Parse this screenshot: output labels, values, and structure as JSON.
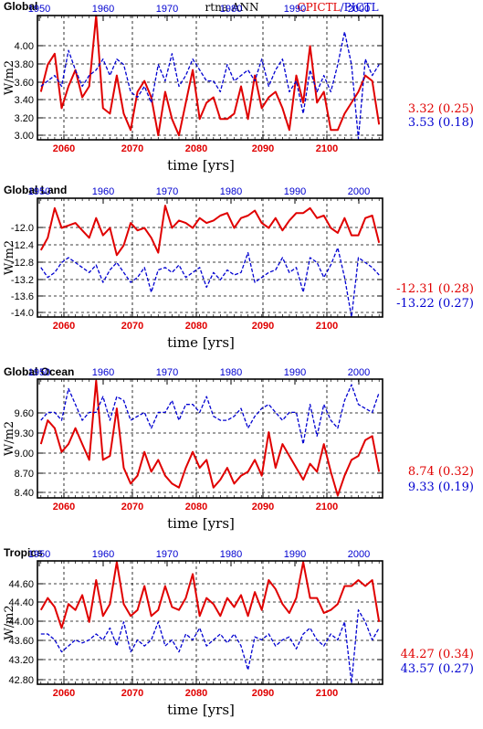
{
  "header": {
    "center": "rtna ANN",
    "series_label_red": "CPICTL",
    "series_label_sep": "/",
    "series_label_blue": "PICTL"
  },
  "colors": {
    "red": "#e00000",
    "blue": "#0000d0",
    "black": "#000000"
  },
  "chart_data": [
    {
      "type": "line",
      "title": "Global",
      "xlabel": "time [yrs]",
      "ylabel": "W/m2",
      "bottom_ticks": [
        "2060",
        "2070",
        "2080",
        "2090",
        "2100"
      ],
      "top_ticks": [
        "1950",
        "1960",
        "1970",
        "1980",
        "1990",
        "2000"
      ],
      "y_ticks": [
        "4.00",
        "3.80",
        "3.60",
        "3.40",
        "3.20",
        "3.00"
      ],
      "ylim": [
        2.96,
        4.1
      ],
      "stats": [
        {
          "text": "3.32 (0.25)",
          "color": "red"
        },
        {
          "text": "3.53 (0.18)",
          "color": "blue"
        }
      ],
      "series": [
        {
          "color": "red",
          "style": "solid",
          "values": [
            3.4,
            3.65,
            3.75,
            3.25,
            3.45,
            3.6,
            3.35,
            3.45,
            4.12,
            3.25,
            3.2,
            3.55,
            3.2,
            3.05,
            3.4,
            3.5,
            3.35,
            3.0,
            3.4,
            3.15,
            3.0,
            3.3,
            3.6,
            3.15,
            3.3,
            3.35,
            3.15,
            3.15,
            3.2,
            3.45,
            3.15,
            3.55,
            3.25,
            3.35,
            3.4,
            3.25,
            3.05,
            3.55,
            3.3,
            3.82,
            3.3,
            3.4,
            3.05,
            3.05,
            3.2,
            3.3,
            3.4,
            3.55,
            3.5,
            3.1
          ]
        },
        {
          "color": "blue",
          "style": "dashed",
          "values": [
            3.45,
            3.5,
            3.55,
            3.45,
            3.78,
            3.6,
            3.45,
            3.55,
            3.6,
            3.7,
            3.55,
            3.7,
            3.65,
            3.4,
            3.35,
            3.45,
            3.3,
            3.65,
            3.5,
            3.75,
            3.45,
            3.55,
            3.7,
            3.6,
            3.5,
            3.5,
            3.4,
            3.65,
            3.5,
            3.55,
            3.6,
            3.5,
            3.7,
            3.45,
            3.6,
            3.7,
            3.4,
            3.5,
            3.2,
            3.6,
            3.4,
            3.55,
            3.4,
            3.65,
            3.95,
            3.65,
            2.97,
            3.7,
            3.55,
            3.65
          ]
        }
      ]
    },
    {
      "type": "line",
      "title": "Global Land",
      "xlabel": "time [yrs]",
      "ylabel": "W/m2",
      "bottom_ticks": [
        "2060",
        "2070",
        "2080",
        "2090",
        "2100"
      ],
      "top_ticks": [
        "1950",
        "1960",
        "1970",
        "1980",
        "1990",
        "2000"
      ],
      "y_ticks": [
        "-12.0",
        "-12.4",
        "-12.8",
        "-13.2",
        "-13.6",
        "-14.0"
      ],
      "ylim": [
        -14.2,
        -11.8
      ],
      "stats": [
        {
          "text": "-12.31 (0.28)",
          "color": "red"
        },
        {
          "text": "-13.22 (0.27)",
          "color": "blue"
        }
      ],
      "series": [
        {
          "color": "red",
          "style": "solid",
          "values": [
            -12.85,
            -12.6,
            -12.0,
            -12.4,
            -12.35,
            -12.3,
            -12.45,
            -12.6,
            -12.2,
            -12.55,
            -12.4,
            -12.95,
            -12.75,
            -12.3,
            -12.45,
            -12.4,
            -12.6,
            -12.9,
            -11.95,
            -12.4,
            -12.25,
            -12.3,
            -12.4,
            -12.2,
            -12.3,
            -12.25,
            -12.15,
            -12.1,
            -12.4,
            -12.2,
            -12.15,
            -12.05,
            -12.3,
            -12.4,
            -12.2,
            -12.45,
            -12.25,
            -12.1,
            -12.1,
            -12.0,
            -12.2,
            -12.15,
            -12.4,
            -12.5,
            -12.2,
            -12.55,
            -12.55,
            -12.2,
            -12.15,
            -12.7
          ]
        },
        {
          "color": "blue",
          "style": "dashed",
          "values": [
            -13.2,
            -13.4,
            -13.3,
            -13.1,
            -13.0,
            -13.1,
            -13.2,
            -13.3,
            -13.15,
            -13.5,
            -13.25,
            -13.1,
            -13.3,
            -13.5,
            -13.4,
            -13.2,
            -13.7,
            -13.25,
            -13.2,
            -13.3,
            -13.15,
            -13.4,
            -13.3,
            -13.2,
            -13.6,
            -13.3,
            -13.45,
            -13.25,
            -13.35,
            -13.3,
            -12.9,
            -13.5,
            -13.4,
            -13.3,
            -13.25,
            -13.0,
            -13.3,
            -13.2,
            -13.7,
            -13.0,
            -13.1,
            -13.4,
            -13.15,
            -12.8,
            -13.4,
            -14.2,
            -13.0,
            -13.1,
            -13.2,
            -13.35
          ]
        }
      ]
    },
    {
      "type": "line",
      "title": "Global Ocean",
      "xlabel": "time [yrs]",
      "ylabel": "W/m2",
      "bottom_ticks": [
        "2060",
        "2070",
        "2080",
        "2090",
        "2100"
      ],
      "top_ticks": [
        "1950",
        "1960",
        "1970",
        "1980",
        "1990",
        "2000"
      ],
      "y_ticks": [
        "9.60",
        "9.30",
        "9.00",
        "8.70",
        "8.40"
      ],
      "ylim": [
        8.22,
        9.72
      ],
      "stats": [
        {
          "text": "8.74 (0.32)",
          "color": "red"
        },
        {
          "text": "9.33 (0.19)",
          "color": "blue"
        }
      ],
      "series": [
        {
          "color": "red",
          "style": "solid",
          "values": [
            8.9,
            9.2,
            9.1,
            8.8,
            8.9,
            9.1,
            8.9,
            8.7,
            9.7,
            8.7,
            8.75,
            9.35,
            8.6,
            8.4,
            8.5,
            8.8,
            8.55,
            8.7,
            8.5,
            8.4,
            8.35,
            8.6,
            8.8,
            8.6,
            8.7,
            8.35,
            8.45,
            8.6,
            8.4,
            8.5,
            8.55,
            8.7,
            8.5,
            9.05,
            8.6,
            8.9,
            8.75,
            8.6,
            8.45,
            8.65,
            8.55,
            8.9,
            8.55,
            8.25,
            8.5,
            8.7,
            8.75,
            8.95,
            9.0,
            8.55
          ]
        },
        {
          "color": "blue",
          "style": "dashed",
          "values": [
            9.2,
            9.3,
            9.3,
            9.2,
            9.6,
            9.4,
            9.2,
            9.3,
            9.3,
            9.5,
            9.2,
            9.5,
            9.45,
            9.2,
            9.25,
            9.3,
            9.1,
            9.3,
            9.3,
            9.45,
            9.2,
            9.4,
            9.4,
            9.3,
            9.5,
            9.25,
            9.2,
            9.2,
            9.25,
            9.35,
            9.1,
            9.25,
            9.35,
            9.4,
            9.3,
            9.2,
            9.3,
            9.3,
            8.9,
            9.4,
            9.0,
            9.4,
            9.2,
            9.1,
            9.45,
            9.65,
            9.4,
            9.35,
            9.3,
            9.55
          ]
        }
      ]
    },
    {
      "type": "line",
      "title": "Tropics",
      "xlabel": "time [yrs]",
      "ylabel": "W/m2",
      "bottom_ticks": [
        "2060",
        "2070",
        "2080",
        "2090",
        "2100"
      ],
      "top_ticks": [
        "1950",
        "1960",
        "1970",
        "1980",
        "1990",
        "2000"
      ],
      "y_ticks": [
        "44.60",
        "44.40",
        "44.00",
        "43.60",
        "43.20",
        "42.80"
      ],
      "ylim": [
        42.76,
        44.82
      ],
      "stats": [
        {
          "text": "44.27 (0.34)",
          "color": "red"
        },
        {
          "text": "43.57 (0.27)",
          "color": "blue"
        }
      ],
      "series": [
        {
          "color": "red",
          "style": "solid",
          "values": [
            44.0,
            44.2,
            44.05,
            43.7,
            44.1,
            44.0,
            44.25,
            43.8,
            44.5,
            43.9,
            44.1,
            44.8,
            44.1,
            43.9,
            44.0,
            44.4,
            43.9,
            44.0,
            44.4,
            44.05,
            44.0,
            44.2,
            44.6,
            43.9,
            44.2,
            44.1,
            43.9,
            44.2,
            44.05,
            44.25,
            43.9,
            44.3,
            44.0,
            44.5,
            44.35,
            44.1,
            43.95,
            44.2,
            44.8,
            44.2,
            44.2,
            43.95,
            44.0,
            44.1,
            44.4,
            44.4,
            44.5,
            44.4,
            44.5,
            43.8
          ]
        },
        {
          "color": "blue",
          "style": "dashed",
          "values": [
            43.6,
            43.6,
            43.5,
            43.3,
            43.4,
            43.5,
            43.45,
            43.5,
            43.6,
            43.5,
            43.7,
            43.4,
            43.8,
            43.3,
            43.5,
            43.4,
            43.5,
            43.8,
            43.4,
            43.5,
            43.3,
            43.6,
            43.5,
            43.7,
            43.4,
            43.5,
            43.6,
            43.45,
            43.6,
            43.4,
            43.0,
            43.55,
            43.5,
            43.6,
            43.4,
            43.5,
            43.55,
            43.35,
            43.6,
            43.7,
            43.5,
            43.4,
            43.6,
            43.5,
            43.8,
            42.78,
            44.0,
            43.8,
            43.5,
            43.7
          ]
        }
      ]
    }
  ]
}
